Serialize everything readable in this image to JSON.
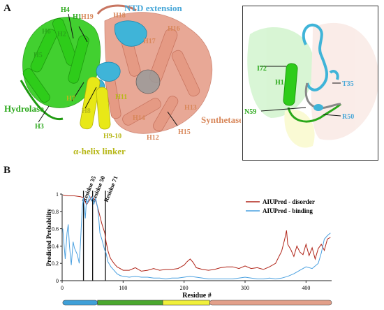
{
  "panel_a": {
    "letter": "A",
    "ntd_extension_label": "NTD extension",
    "hydrolase_label": "Hydrolase",
    "synthetase_label": "Synthetase",
    "linker_label": "α-helix linker",
    "helix_labels": {
      "h1": "H1",
      "h2": "H2",
      "h3": "H3",
      "h4": "H4",
      "h5": "H5",
      "h6": "H6",
      "h7": "H7",
      "h8": "H8",
      "h9_10": "H9-10",
      "h11": "H11",
      "h12": "H12",
      "h13": "H13",
      "h14": "H14",
      "h15": "H15",
      "h16": "H16",
      "h17": "H17",
      "h18": "H18",
      "h19": "H19"
    },
    "inset": {
      "i72": "I72",
      "h1": "H1",
      "n59": "N59",
      "t35": "T35",
      "r50": "R50"
    },
    "colors": {
      "ntd": "#3fb4d8",
      "hydrolase": "#2ecc1a",
      "linker": "#e8e817",
      "synthetase": "#e59a84",
      "ntd_text": "#4aa8d8",
      "hydrolase_text": "#2aa81a",
      "synthetase_text": "#d8875a",
      "linker_text": "#b8b81a"
    }
  },
  "panel_b": {
    "letter": "B",
    "residue_markers": [
      {
        "label": "Residue 35",
        "x": 35
      },
      {
        "label": "Residue 50",
        "x": 50
      },
      {
        "label": "Residue 71",
        "x": 71
      }
    ],
    "domain_bar": [
      {
        "from": 1,
        "to": 58,
        "color": "#3fa0d8"
      },
      {
        "from": 58,
        "to": 165,
        "color": "#4aa82e"
      },
      {
        "from": 165,
        "to": 242,
        "color": "#f0f03a"
      },
      {
        "from": 242,
        "to": 442,
        "color": "#e2a08a"
      }
    ]
  },
  "chart_data": {
    "type": "line",
    "xlabel": "Residue #",
    "ylabel": "Predicted Probability",
    "xlim": [
      0,
      442
    ],
    "ylim": [
      0,
      1
    ],
    "xticks": [
      0,
      100,
      200,
      300,
      400
    ],
    "yticks": [
      0,
      0.2,
      0.4,
      0.6,
      0.8,
      1
    ],
    "ytick_labels": [
      "0",
      "0.2",
      "0.4",
      "0.6",
      "0.8",
      "1"
    ],
    "grid": false,
    "legend": "top-right",
    "series": [
      {
        "name": "AIUPred - disorder",
        "color": "#b02418",
        "x": [
          1,
          10,
          20,
          30,
          35,
          40,
          45,
          48,
          50,
          55,
          60,
          65,
          70,
          72,
          75,
          78,
          80,
          85,
          90,
          95,
          100,
          110,
          120,
          130,
          140,
          150,
          160,
          170,
          180,
          190,
          200,
          205,
          210,
          215,
          220,
          230,
          240,
          250,
          260,
          270,
          280,
          290,
          300,
          310,
          320,
          330,
          340,
          350,
          355,
          360,
          365,
          368,
          370,
          375,
          380,
          385,
          390,
          395,
          400,
          405,
          410,
          415,
          420,
          425,
          430,
          435,
          440
        ],
        "y": [
          0.99,
          0.98,
          0.98,
          0.97,
          0.96,
          0.88,
          0.93,
          0.97,
          0.96,
          0.93,
          0.8,
          0.66,
          0.55,
          0.45,
          0.35,
          0.28,
          0.25,
          0.2,
          0.16,
          0.14,
          0.12,
          0.12,
          0.15,
          0.11,
          0.12,
          0.14,
          0.12,
          0.13,
          0.13,
          0.14,
          0.18,
          0.22,
          0.25,
          0.21,
          0.15,
          0.13,
          0.12,
          0.13,
          0.15,
          0.16,
          0.16,
          0.14,
          0.17,
          0.14,
          0.15,
          0.13,
          0.16,
          0.2,
          0.27,
          0.34,
          0.48,
          0.58,
          0.42,
          0.36,
          0.28,
          0.4,
          0.33,
          0.3,
          0.42,
          0.29,
          0.38,
          0.25,
          0.37,
          0.42,
          0.35,
          0.48,
          0.5
        ]
      },
      {
        "name": "AIUPred - binding",
        "color": "#4aa0e0",
        "x": [
          1,
          5,
          8,
          10,
          12,
          15,
          18,
          20,
          25,
          28,
          30,
          33,
          35,
          38,
          40,
          42,
          45,
          48,
          50,
          52,
          55,
          58,
          60,
          62,
          65,
          68,
          70,
          72,
          75,
          80,
          85,
          90,
          95,
          100,
          110,
          120,
          130,
          140,
          150,
          160,
          170,
          180,
          190,
          200,
          210,
          220,
          230,
          240,
          250,
          260,
          270,
          280,
          290,
          300,
          310,
          320,
          330,
          340,
          350,
          360,
          370,
          380,
          390,
          400,
          410,
          420,
          425,
          430,
          435,
          440
        ],
        "y": [
          0.6,
          0.25,
          0.55,
          0.65,
          0.4,
          0.18,
          0.45,
          0.38,
          0.3,
          0.2,
          0.42,
          0.85,
          0.96,
          0.72,
          0.94,
          0.9,
          0.98,
          0.92,
          0.97,
          0.88,
          0.95,
          0.85,
          0.72,
          0.55,
          0.48,
          0.4,
          0.35,
          0.32,
          0.22,
          0.16,
          0.12,
          0.08,
          0.06,
          0.05,
          0.04,
          0.05,
          0.04,
          0.04,
          0.03,
          0.03,
          0.02,
          0.03,
          0.03,
          0.04,
          0.05,
          0.04,
          0.03,
          0.02,
          0.02,
          0.02,
          0.02,
          0.02,
          0.03,
          0.04,
          0.03,
          0.02,
          0.02,
          0.03,
          0.02,
          0.03,
          0.05,
          0.08,
          0.12,
          0.16,
          0.14,
          0.2,
          0.32,
          0.48,
          0.52,
          0.55
        ]
      }
    ]
  }
}
